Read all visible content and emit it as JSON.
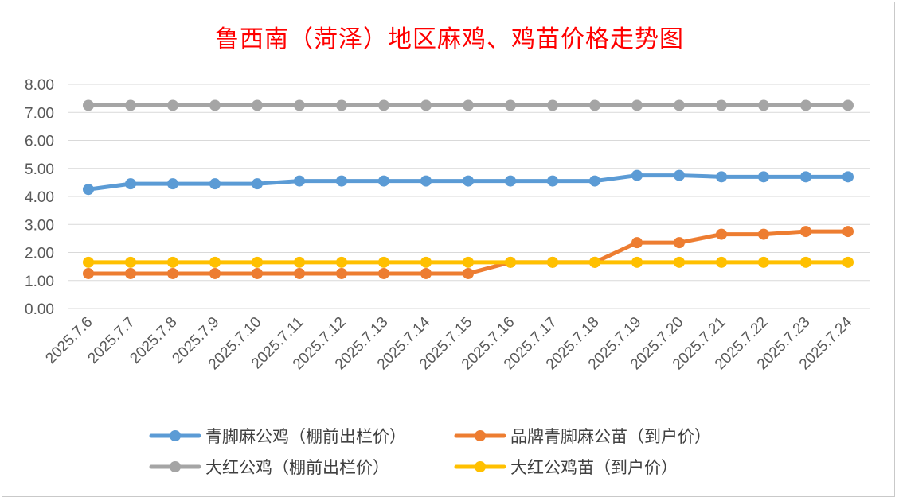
{
  "chart_data": {
    "type": "line",
    "title": "鲁西南（菏泽）地区麻鸡、鸡苗价格走势图",
    "xlabel": "",
    "ylabel": "",
    "ylim": [
      0,
      8
    ],
    "yticks": [
      "0.00",
      "1.00",
      "2.00",
      "3.00",
      "4.00",
      "5.00",
      "6.00",
      "7.00",
      "8.00"
    ],
    "grid": true,
    "legend_position": "bottom",
    "categories": [
      "2025.7.6",
      "2025.7.7",
      "2025.7.8",
      "2025.7.9",
      "2025.7.10",
      "2025.7.11",
      "2025.7.12",
      "2025.7.13",
      "2025.7.14",
      "2025.7.15",
      "2025.7.16",
      "2025.7.17",
      "2025.7.18",
      "2025.7.19",
      "2025.7.20",
      "2025.7.21",
      "2025.7.22",
      "2025.7.23",
      "2025.7.24"
    ],
    "series": [
      {
        "name": "青脚麻公鸡（棚前出栏价）",
        "color": "#5b9bd5",
        "values": [
          4.25,
          4.45,
          4.45,
          4.45,
          4.45,
          4.55,
          4.55,
          4.55,
          4.55,
          4.55,
          4.55,
          4.55,
          4.55,
          4.75,
          4.75,
          4.7,
          4.7,
          4.7,
          4.7
        ]
      },
      {
        "name": "品牌青脚麻公苗（到户价）",
        "color": "#ed7d31",
        "values": [
          1.25,
          1.25,
          1.25,
          1.25,
          1.25,
          1.25,
          1.25,
          1.25,
          1.25,
          1.25,
          1.65,
          1.65,
          1.65,
          2.35,
          2.35,
          2.65,
          2.65,
          2.75,
          2.75
        ]
      },
      {
        "name": "大红公鸡（棚前出栏价）",
        "color": "#a5a5a5",
        "values": [
          7.25,
          7.25,
          7.25,
          7.25,
          7.25,
          7.25,
          7.25,
          7.25,
          7.25,
          7.25,
          7.25,
          7.25,
          7.25,
          7.25,
          7.25,
          7.25,
          7.25,
          7.25,
          7.25
        ]
      },
      {
        "name": "大红公鸡苗（到户价）",
        "color": "#ffc000",
        "values": [
          1.65,
          1.65,
          1.65,
          1.65,
          1.65,
          1.65,
          1.65,
          1.65,
          1.65,
          1.65,
          1.65,
          1.65,
          1.65,
          1.65,
          1.65,
          1.65,
          1.65,
          1.65,
          1.65
        ]
      }
    ]
  }
}
